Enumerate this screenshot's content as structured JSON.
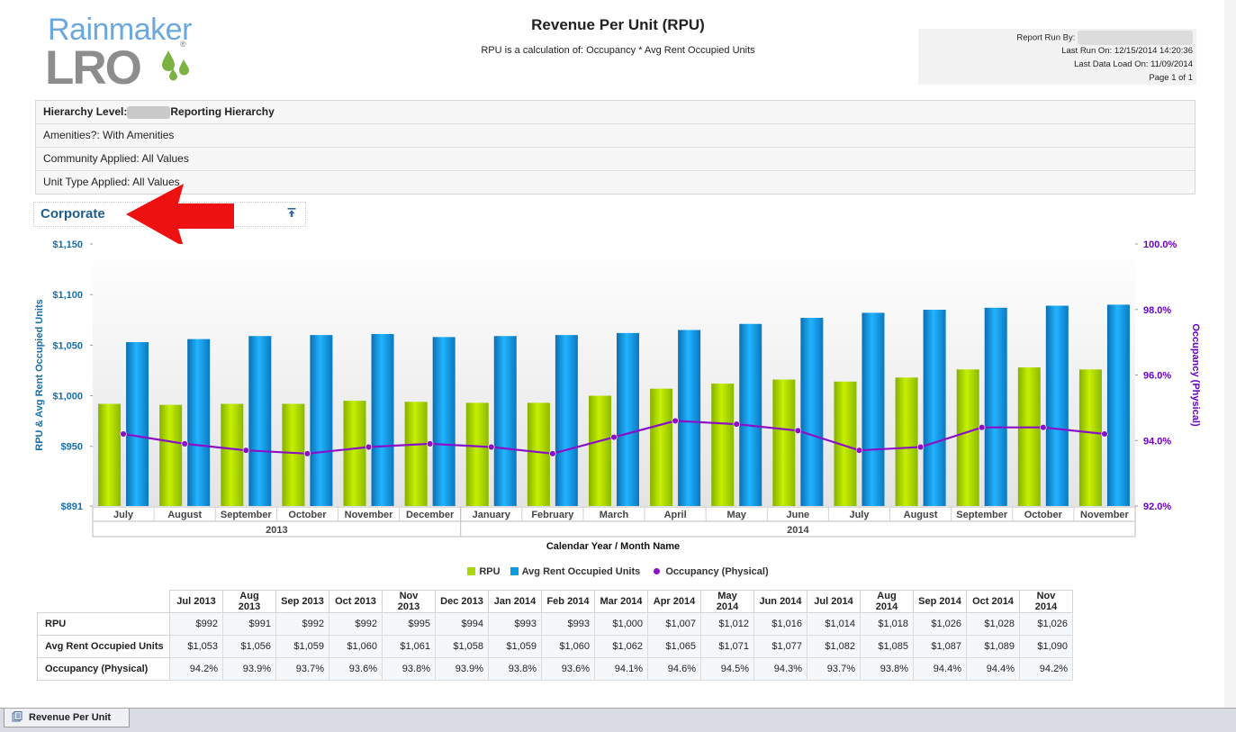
{
  "logo": {
    "word_top": "Rainmaker",
    "word_bottom": "LRO",
    "registered": "®"
  },
  "report": {
    "title": "Revenue Per Unit (RPU)",
    "subtitle": "RPU is a calculation of:  Occupancy * Avg Rent Occupied Units"
  },
  "run_info": {
    "run_by_label": "Report Run By:",
    "last_run": "Last Run On: 12/15/2014 14:20:36",
    "last_load": "Last Data Load On: 11/09/2014",
    "page": "Page 1 of 1"
  },
  "params": {
    "hierarchy_label": "Hierarchy Level:",
    "hierarchy_value": "Reporting Hierarchy",
    "amenities": "Amenities?:  With Amenities",
    "community": "Community Applied: All Values",
    "unit_type": "Unit Type Applied: All Values"
  },
  "section": {
    "label": "Corporate"
  },
  "colors": {
    "rpu": "#a8d800",
    "avg_rent": "#0a9ae0",
    "occupancy": "#8a10c8",
    "left_axis": "#1a6ea8",
    "right_axis": "#6a00c8"
  },
  "chart_data": {
    "type": "bar",
    "xlabel": "Calendar Year / Month Name",
    "ylabel": "RPU & Avg Rent Occupied Units",
    "y2label": "Occupancy (Physical)",
    "ylim": [
      891,
      1150
    ],
    "yticks": [
      "$1,150",
      "$1,100",
      "$1,050",
      "$1,000",
      "$950",
      "$891"
    ],
    "ytick_values": [
      1150,
      1100,
      1050,
      1000,
      950,
      891
    ],
    "y2lim": [
      92.0,
      100.0
    ],
    "y2ticks": [
      "100.0%",
      "98.0%",
      "96.0%",
      "94.0%",
      "92.0%"
    ],
    "y2tick_values": [
      100,
      98,
      96,
      94,
      92
    ],
    "categories": [
      "July",
      "August",
      "September",
      "October",
      "November",
      "December",
      "January",
      "February",
      "March",
      "April",
      "May",
      "June",
      "July",
      "August",
      "September",
      "October",
      "November"
    ],
    "groups": [
      {
        "label": "2013",
        "count": 6
      },
      {
        "label": "2014",
        "count": 11
      }
    ],
    "series": [
      {
        "name": "RPU",
        "kind": "bar",
        "values": [
          992,
          991,
          992,
          992,
          995,
          994,
          993,
          993,
          1000,
          1007,
          1012,
          1016,
          1014,
          1018,
          1026,
          1028,
          1026
        ]
      },
      {
        "name": "Avg Rent Occupied Units",
        "kind": "bar",
        "values": [
          1053,
          1056,
          1059,
          1060,
          1061,
          1058,
          1059,
          1060,
          1062,
          1065,
          1071,
          1077,
          1082,
          1085,
          1087,
          1089,
          1090
        ]
      },
      {
        "name": "Occupancy (Physical)",
        "kind": "line",
        "axis": "right",
        "values": [
          94.2,
          93.9,
          93.7,
          93.6,
          93.8,
          93.9,
          93.8,
          93.6,
          94.1,
          94.6,
          94.5,
          94.3,
          93.7,
          93.8,
          94.4,
          94.4,
          94.2
        ]
      }
    ],
    "legend": [
      "RPU",
      "Avg Rent Occupied Units",
      "Occupancy (Physical)"
    ],
    "legend_position": "bottom"
  },
  "table": {
    "columns": [
      "Jul 2013",
      "Aug 2013",
      "Sep 2013",
      "Oct 2013",
      "Nov 2013",
      "Dec 2013",
      "Jan 2014",
      "Feb 2014",
      "Mar 2014",
      "Apr 2014",
      "May 2014",
      "Jun 2014",
      "Jul 2014",
      "Aug 2014",
      "Sep 2014",
      "Oct 2014",
      "Nov 2014"
    ],
    "rows": [
      {
        "label": "RPU",
        "cells": [
          "$992",
          "$991",
          "$992",
          "$992",
          "$995",
          "$994",
          "$993",
          "$993",
          "$1,000",
          "$1,007",
          "$1,012",
          "$1,016",
          "$1,014",
          "$1,018",
          "$1,026",
          "$1,028",
          "$1,026"
        ]
      },
      {
        "label": "Avg Rent Occupied Units",
        "cells": [
          "$1,053",
          "$1,056",
          "$1,059",
          "$1,060",
          "$1,061",
          "$1,058",
          "$1,059",
          "$1,060",
          "$1,062",
          "$1,065",
          "$1,071",
          "$1,077",
          "$1,082",
          "$1,085",
          "$1,087",
          "$1,089",
          "$1,090"
        ]
      },
      {
        "label": "Occupancy (Physical)",
        "cells": [
          "94.2%",
          "93.9%",
          "93.7%",
          "93.6%",
          "93.8%",
          "93.9%",
          "93.8%",
          "93.6%",
          "94.1%",
          "94.6%",
          "94.5%",
          "94.3%",
          "93.7%",
          "93.8%",
          "94.4%",
          "94.4%",
          "94.2%"
        ]
      }
    ]
  },
  "tab": {
    "label": "Revenue Per Unit"
  }
}
